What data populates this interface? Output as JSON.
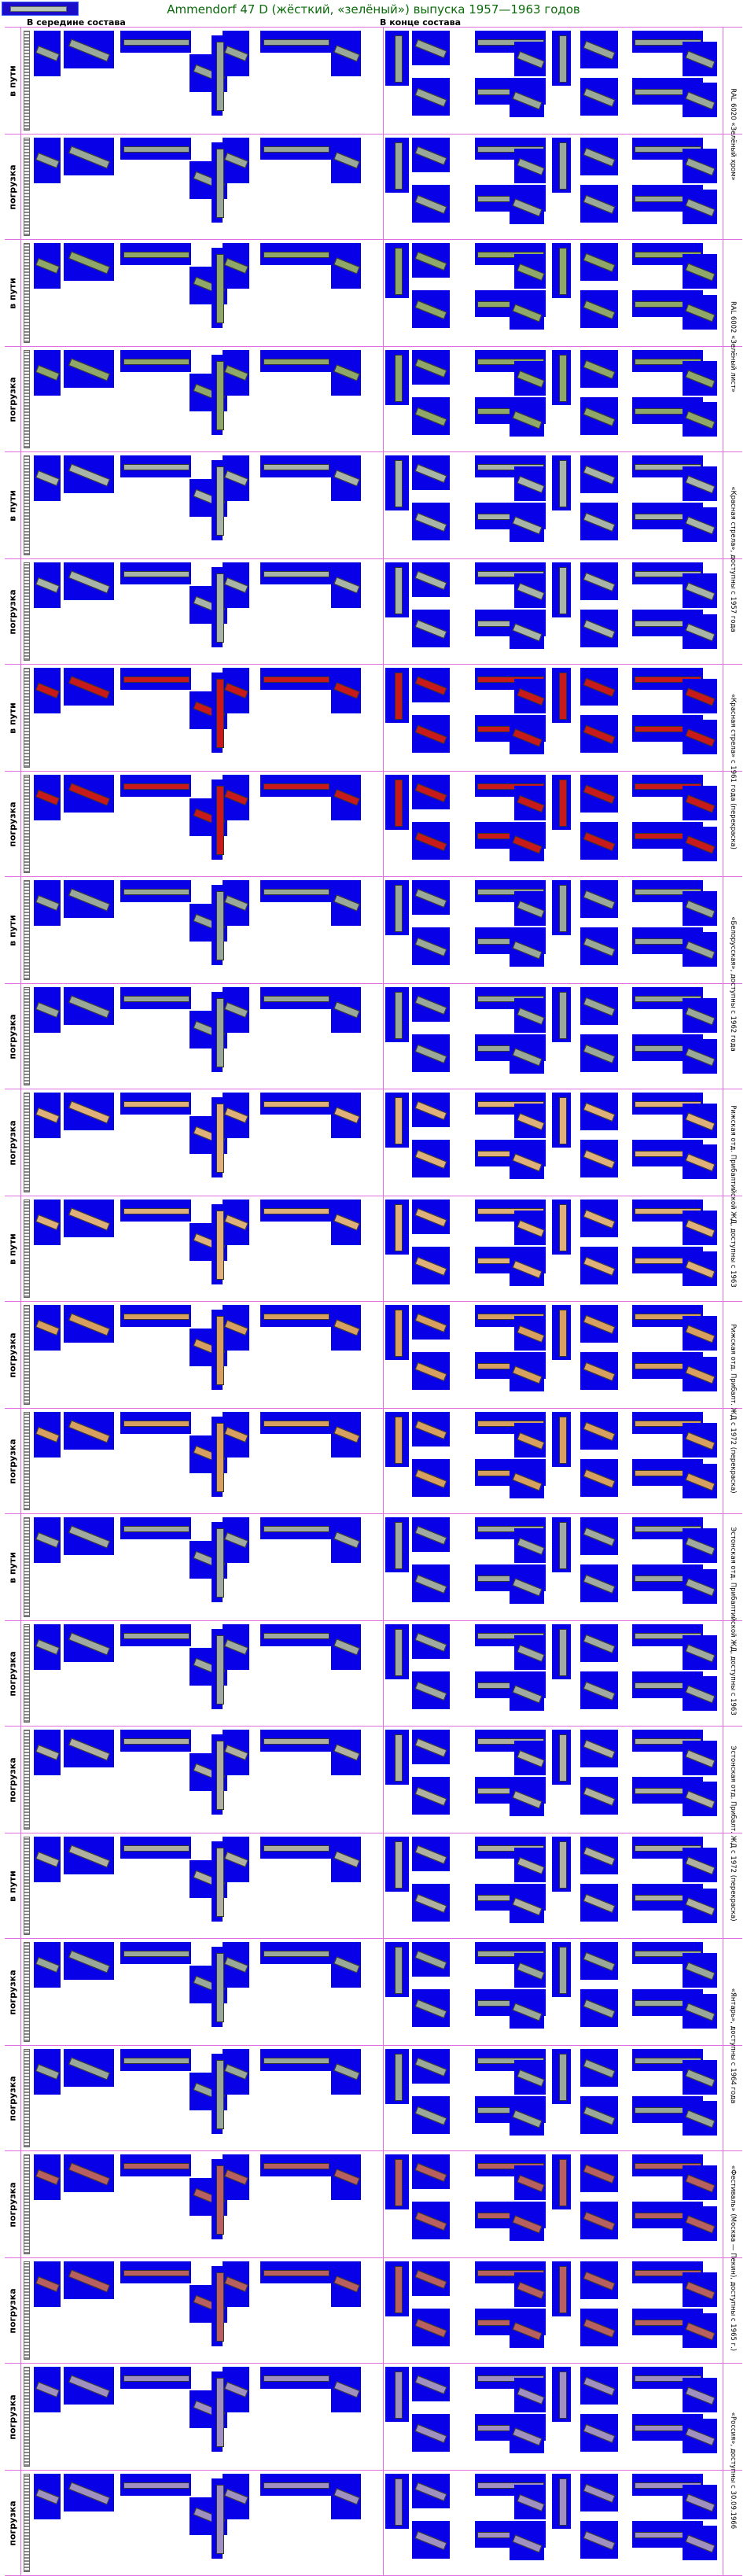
{
  "header": {
    "title": "Ammendorf 47 D (жёсткий, «зелёный») выпуска 1957—1963 годов",
    "col_middle": "В середине состава",
    "col_end": "В конце состава"
  },
  "colors": {
    "tile_bg": "#0800e6",
    "grid_line": "#e070e0",
    "title": "#0b6b0b",
    "livery_green": "#9aa89a",
    "livery_red": "#c81a1a",
    "livery_orange": "#e0b07a"
  },
  "rows": [
    {
      "state": "в пути",
      "caption": "RAL 6020 «Зелёный хром»",
      "livery": "#9aa89a"
    },
    {
      "state": "погрузка",
      "caption": "RAL 6020 «Зелёный хром»",
      "livery": "#9aa89a"
    },
    {
      "state": "в пути",
      "caption": "RAL 6002 «Зелёный лист»",
      "livery": "#8fa86a"
    },
    {
      "state": "погрузка",
      "caption": "RAL 6002 «Зелёный лист»",
      "livery": "#8fa86a"
    },
    {
      "state": "в пути",
      "caption": "«Красная стрела», доступны с 1957 года",
      "livery": "#a9b4a9"
    },
    {
      "state": "погрузка",
      "caption": "«Красная стрела», доступны с 1957 года",
      "livery": "#a9b4a9"
    },
    {
      "state": "в пути",
      "caption": "«Красная стрела» с 1961 года (перекраска)",
      "livery": "#c81a1a"
    },
    {
      "state": "погрузка",
      "caption": "«Красная стрела» с 1961 года (перекраска)",
      "livery": "#c81a1a"
    },
    {
      "state": "в пути",
      "caption": "«Белорусская», доступны с 1962 года",
      "livery": "#9aa89a"
    },
    {
      "state": "погрузка",
      "caption": "«Белорусская», доступны с 1962 года",
      "livery": "#9aa89a"
    },
    {
      "state": "погрузка",
      "caption": "Рижская отд. Прибалтийской ЖД, доступны с 1963",
      "livery": "#e0b07a"
    },
    {
      "state": "в пути",
      "caption": "Рижская отд. Прибалтийской ЖД, доступны с 1963",
      "livery": "#e0b07a"
    },
    {
      "state": "погрузка",
      "caption": "Рижская отд. Прибалт. ЖД с 1972 (перекраска)",
      "livery": "#d8a060"
    },
    {
      "state": "погрузка",
      "caption": "Рижская отд. Прибалт. ЖД с 1972 (перекраска)",
      "livery": "#d8a060"
    },
    {
      "state": "в пути",
      "caption": "Эстонская отд. Прибалтийской ЖД, доступны с 1963",
      "livery": "#a0aaa0"
    },
    {
      "state": "погрузка",
      "caption": "Эстонская отд. Прибалтийской ЖД, доступны с 1963",
      "livery": "#a0aaa0"
    },
    {
      "state": "погрузка",
      "caption": "Эстонская отд. Прибалт. ЖД с 1972 (перекраска)",
      "livery": "#b0b0a0"
    },
    {
      "state": "в пути",
      "caption": "Эстонская отд. Прибалт. ЖД с 1972 (перекраска)",
      "livery": "#b0b0a0"
    },
    {
      "state": "погрузка",
      "caption": "«Янтарь», доступны с 1964 года",
      "livery": "#9aa89a"
    },
    {
      "state": "погрузка",
      "caption": "«Янтарь», доступны с 1964 года",
      "livery": "#9aa89a"
    },
    {
      "state": "погрузка",
      "caption": "«Фестиваль» (Москва — Пекин), доступны с 1965 г.)",
      "livery": "#b86060"
    },
    {
      "state": "погрузка",
      "caption": "«Фестиваль» (Москва — Пекин), доступны с 1965 г.)",
      "livery": "#b86060"
    },
    {
      "state": "погрузка",
      "caption": "«Россия», доступны с 30.09.1966",
      "livery": "#a090c0"
    },
    {
      "state": "погрузка",
      "caption": "«Россия», доступны с 30.09.1966",
      "livery": "#a090c0"
    }
  ]
}
